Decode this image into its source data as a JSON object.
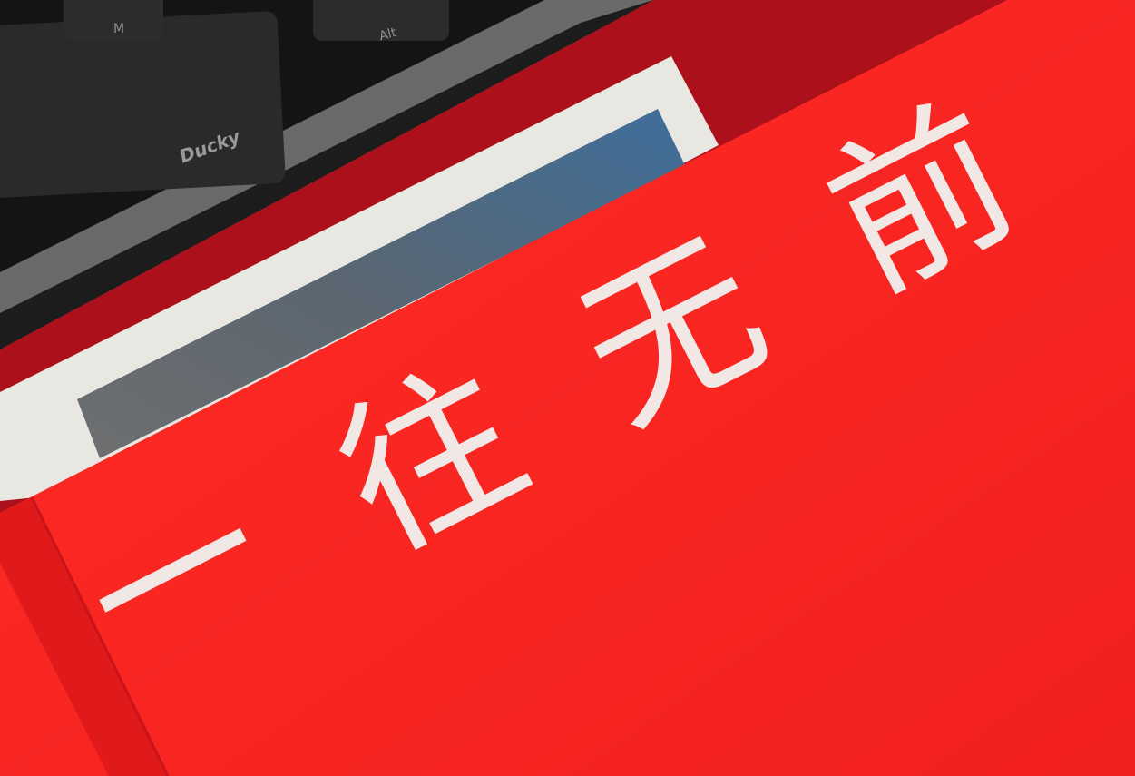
{
  "keyboard": {
    "keys": [
      "M",
      "Alt"
    ],
    "brand": "Ducky"
  },
  "book": {
    "title_chars": [
      "一",
      "往",
      "无",
      "前"
    ]
  }
}
